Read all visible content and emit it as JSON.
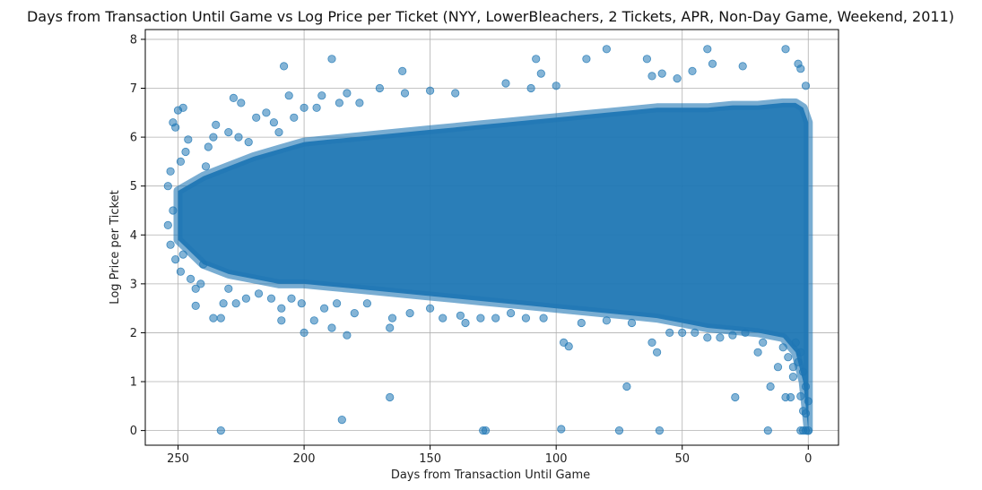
{
  "chart_data": {
    "type": "scatter",
    "title": "Days from Transaction Until Game vs Log Price per Ticket (NYY, LowerBleachers, 2 Tickets, APR, Non-Day Game, Weekend, 2011)",
    "xlabel": "Days from Transaction Until Game",
    "ylabel": "Log Price per Ticket",
    "xlim": [
      263,
      -12
    ],
    "ylim": [
      -0.3,
      8.2
    ],
    "x_reversed": true,
    "grid": true,
    "legend": "none",
    "x_ticks": [
      250,
      200,
      150,
      100,
      50,
      0
    ],
    "y_ticks": [
      0,
      1,
      2,
      3,
      4,
      5,
      6,
      7,
      8
    ],
    "point_color": "#1f77b4",
    "point_alpha": 0.55,
    "series": [
      {
        "points": [
          [
            233,
            0.0
          ],
          [
            129,
            0.0
          ],
          [
            128,
            0.0
          ],
          [
            98,
            0.03
          ],
          [
            75,
            0.0
          ],
          [
            59,
            0.0
          ],
          [
            16,
            0.0
          ],
          [
            185,
            0.22
          ],
          [
            166,
            0.68
          ],
          [
            72,
            0.9
          ],
          [
            29,
            0.68
          ],
          [
            15,
            0.9
          ],
          [
            9,
            0.68
          ],
          [
            7,
            0.68
          ],
          [
            6,
            1.1
          ],
          [
            4,
            1.4
          ],
          [
            3,
            1.6
          ],
          [
            2,
            1.2
          ],
          [
            1,
            0.9
          ],
          [
            0,
            0.6
          ],
          [
            0,
            0.0
          ],
          [
            1,
            0.0
          ],
          [
            2,
            0.0
          ],
          [
            3,
            0.0
          ],
          [
            2,
            0.4
          ],
          [
            1,
            0.35
          ],
          [
            3,
            0.7
          ],
          [
            5,
            1.8
          ],
          [
            12,
            1.3
          ],
          [
            20,
            1.6
          ],
          [
            35,
            1.9
          ],
          [
            60,
            1.6
          ],
          [
            62,
            1.8
          ],
          [
            97,
            1.8
          ],
          [
            95,
            1.72
          ],
          [
            183,
            1.95
          ],
          [
            200,
            2.0
          ],
          [
            189,
            2.1
          ],
          [
            196,
            2.25
          ],
          [
            166,
            2.1
          ],
          [
            136,
            2.2
          ],
          [
            130,
            2.3
          ],
          [
            124,
            2.3
          ],
          [
            236,
            2.3
          ],
          [
            243,
            2.55
          ],
          [
            232,
            2.6
          ],
          [
            189,
            7.6
          ],
          [
            208,
            7.45
          ],
          [
            161,
            7.35
          ],
          [
            108,
            7.6
          ],
          [
            106,
            7.3
          ],
          [
            88,
            7.6
          ],
          [
            80,
            7.8
          ],
          [
            64,
            7.6
          ],
          [
            40,
            7.8
          ],
          [
            38,
            7.5
          ],
          [
            9,
            7.8
          ],
          [
            4,
            7.5
          ],
          [
            26,
            7.45
          ],
          [
            46,
            7.35
          ],
          [
            58,
            7.3
          ],
          [
            52,
            7.2
          ],
          [
            62,
            7.25
          ],
          [
            228,
            6.8
          ],
          [
            225,
            6.7
          ],
          [
            206,
            6.85
          ],
          [
            193,
            6.85
          ],
          [
            183,
            6.9
          ],
          [
            170,
            7.0
          ],
          [
            160,
            6.9
          ],
          [
            150,
            6.95
          ],
          [
            140,
            6.9
          ],
          [
            120,
            7.1
          ],
          [
            110,
            7.0
          ],
          [
            100,
            7.05
          ],
          [
            1,
            7.05
          ],
          [
            3,
            7.4
          ],
          [
            250,
            6.55
          ],
          [
            248,
            6.6
          ],
          [
            252,
            6.3
          ],
          [
            251,
            6.2
          ],
          [
            246,
            5.95
          ],
          [
            247,
            5.7
          ],
          [
            249,
            5.5
          ],
          [
            253,
            5.3
          ],
          [
            254,
            5.0
          ],
          [
            252,
            4.5
          ],
          [
            254,
            4.2
          ],
          [
            253,
            3.8
          ],
          [
            251,
            3.5
          ],
          [
            249,
            3.25
          ],
          [
            248,
            3.6
          ],
          [
            245,
            3.1
          ],
          [
            243,
            2.9
          ],
          [
            241,
            3.0
          ],
          [
            240,
            3.4
          ],
          [
            239,
            5.4
          ],
          [
            238,
            5.8
          ],
          [
            236,
            6.0
          ],
          [
            235,
            6.25
          ],
          [
            230,
            6.1
          ],
          [
            226,
            6.0
          ],
          [
            222,
            5.9
          ],
          [
            219,
            6.4
          ],
          [
            215,
            6.5
          ],
          [
            212,
            6.3
          ],
          [
            210,
            6.1
          ],
          [
            204,
            6.4
          ],
          [
            200,
            6.6
          ],
          [
            195,
            6.6
          ],
          [
            186,
            6.7
          ],
          [
            178,
            6.7
          ],
          [
            230,
            2.9
          ],
          [
            227,
            2.6
          ],
          [
            223,
            2.7
          ],
          [
            218,
            2.8
          ],
          [
            213,
            2.7
          ],
          [
            209,
            2.5
          ],
          [
            205,
            2.7
          ],
          [
            201,
            2.6
          ],
          [
            192,
            2.5
          ],
          [
            187,
            2.6
          ],
          [
            180,
            2.4
          ],
          [
            175,
            2.6
          ],
          [
            165,
            2.3
          ],
          [
            158,
            2.4
          ],
          [
            150,
            2.5
          ],
          [
            145,
            2.3
          ],
          [
            138,
            2.35
          ],
          [
            118,
            2.4
          ],
          [
            112,
            2.3
          ],
          [
            105,
            2.3
          ],
          [
            90,
            2.2
          ],
          [
            80,
            2.25
          ],
          [
            70,
            2.2
          ],
          [
            55,
            2.0
          ],
          [
            50,
            2.0
          ],
          [
            45,
            2.0
          ],
          [
            40,
            1.9
          ],
          [
            30,
            1.95
          ],
          [
            25,
            2.0
          ],
          [
            18,
            1.8
          ],
          [
            10,
            1.7
          ],
          [
            8,
            1.5
          ],
          [
            6,
            1.3
          ],
          [
            233,
            2.3
          ],
          [
            209,
            2.25
          ]
        ]
      }
    ],
    "dense_band": {
      "x": [
        250,
        240,
        230,
        220,
        210,
        200,
        190,
        180,
        170,
        160,
        150,
        140,
        130,
        120,
        110,
        100,
        90,
        80,
        70,
        60,
        50,
        40,
        30,
        20,
        10,
        5,
        2,
        0
      ],
      "y_low": [
        3.9,
        3.4,
        3.2,
        3.1,
        3.0,
        3.0,
        2.95,
        2.9,
        2.85,
        2.8,
        2.75,
        2.7,
        2.65,
        2.6,
        2.55,
        2.5,
        2.45,
        2.4,
        2.35,
        2.3,
        2.2,
        2.1,
        2.05,
        2.0,
        1.9,
        1.6,
        1.0,
        0.0
      ],
      "y_high": [
        4.9,
        5.2,
        5.4,
        5.6,
        5.75,
        5.9,
        5.95,
        6.0,
        6.05,
        6.1,
        6.15,
        6.2,
        6.25,
        6.3,
        6.35,
        6.4,
        6.45,
        6.5,
        6.55,
        6.6,
        6.6,
        6.6,
        6.65,
        6.65,
        6.7,
        6.7,
        6.6,
        6.3
      ]
    }
  }
}
